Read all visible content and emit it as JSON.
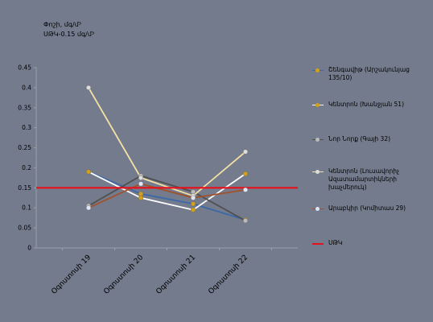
{
  "header": {
    "line1": "Փոշի, մգ/մ³",
    "line2": "ՍԹԿ-0.15 մգ/մ³"
  },
  "chart_data": {
    "type": "line",
    "categories": [
      "Օգոստոսի 19",
      "Օգոստոսի 20",
      "Օգոստոսի 21",
      "Օգոստոսի 22"
    ],
    "ylim": [
      0,
      0.45
    ],
    "yticks": [
      "0",
      "0.05",
      "0.1",
      "0.15",
      "0.2",
      "0.25",
      "0.3",
      "0.35",
      "0.4",
      "0.45"
    ],
    "grid": false,
    "legend_position": "right",
    "series": [
      {
        "name": "Շենգավիթ (Արշակունյաց 135/10)",
        "values": [
          0.19,
          0.135,
          0.11,
          0.07
        ],
        "line_color": "#3a68a8",
        "marker_color": "#d4a017"
      },
      {
        "name": "Կենտրոն (Խանջյան 51)",
        "values": [
          0.19,
          0.125,
          0.095,
          0.185
        ],
        "line_color": "#ffffff",
        "marker_color": "#d4a017"
      },
      {
        "name": "Նոր Նորք (Գայի 32)",
        "values": [
          0.105,
          0.18,
          0.14,
          0.068
        ],
        "line_color": "#505050",
        "marker_color": "#bbbbbb"
      },
      {
        "name": "Կենտրոն (Լուսավորիչ Ազատամարտիկների խաչմերուկ)",
        "values": [
          0.4,
          0.175,
          0.13,
          0.24
        ],
        "line_color": "#f5e1a4",
        "marker_color": "#dddddd"
      },
      {
        "name": "Արաբկիր (Կոմիտաս 29)",
        "values": [
          0.1,
          0.16,
          0.125,
          0.145
        ],
        "line_color": "#a0522d",
        "marker_color": "#dfe6f5"
      }
    ],
    "threshold": {
      "name": "ՍԹԿ",
      "value": 0.15,
      "color": "#e8101a"
    }
  }
}
